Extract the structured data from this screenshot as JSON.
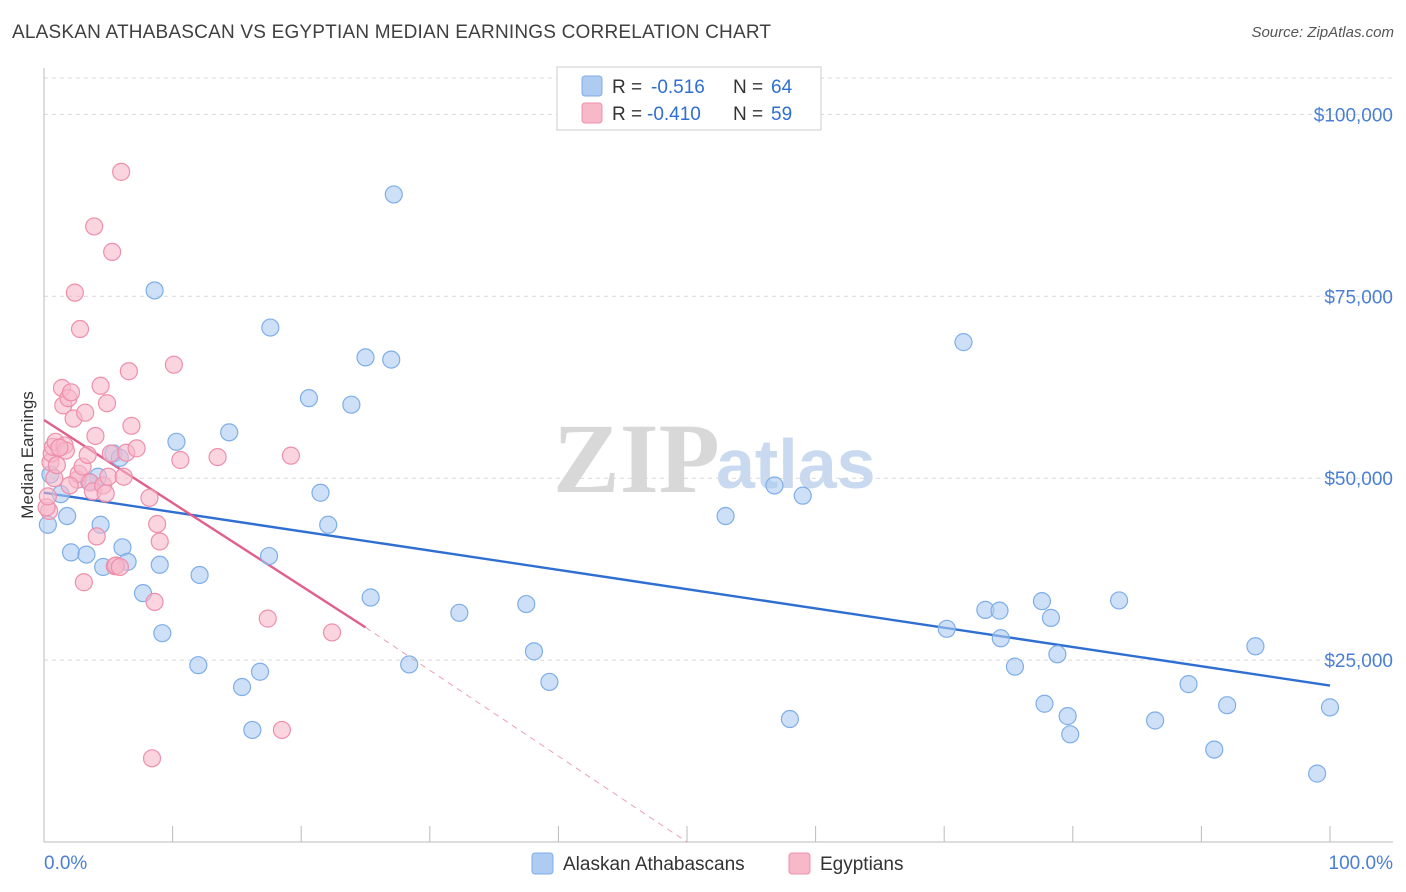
{
  "header": {
    "title": "ALASKAN ATHABASCAN VS EGYPTIAN MEDIAN EARNINGS CORRELATION CHART",
    "source": "Source: ZipAtlas.com"
  },
  "watermark": {
    "zip": "ZIP",
    "atlas": "atlas"
  },
  "legend_top": {
    "rows": [
      {
        "r_label": "R =",
        "r_value": "-0.516",
        "n_label": "N =",
        "n_value": "64",
        "color": "#aecbf2"
      },
      {
        "r_label": "R =",
        "r_value": "-0.410",
        "n_label": "N =",
        "n_value": "59",
        "color": "#f7b8c9"
      }
    ]
  },
  "legend_bottom": {
    "items": [
      {
        "label": "Alaskan Athabascans",
        "color": "#aecbf2"
      },
      {
        "label": "Egyptians",
        "color": "#f7b8c9"
      }
    ]
  },
  "chart_data": {
    "type": "scatter",
    "title": "ALASKAN ATHABASCAN VS EGYPTIAN MEDIAN EARNINGS CORRELATION CHART",
    "xlabel": "",
    "ylabel": "Median Earnings",
    "xlim": [
      0,
      100
    ],
    "ylim": [
      0,
      105000
    ],
    "x_tick_labels": [
      "0.0%",
      "100.0%"
    ],
    "y_ticks": [
      25000,
      50000,
      75000,
      100000
    ],
    "y_tick_labels": [
      "$25,000",
      "$50,000",
      "$75,000",
      "$100,000"
    ],
    "grid": true,
    "series": [
      {
        "name": "Alaskan Athabascans",
        "color": "#7eaee8",
        "fill": "#aecbf2",
        "trend": {
          "x": [
            0,
            100
          ],
          "y": [
            48000,
            21500
          ],
          "color": "#2e6fd1"
        },
        "points": [
          [
            0.3,
            43.6
          ],
          [
            0.5,
            50.5
          ],
          [
            1.3,
            47.8
          ],
          [
            1.8,
            44.8
          ],
          [
            2.1,
            39.8
          ],
          [
            3.3,
            39.5
          ],
          [
            4.2,
            50.2
          ],
          [
            4.4,
            43.6
          ],
          [
            4.6,
            37.8
          ],
          [
            5.4,
            53.4
          ],
          [
            5.9,
            52.8
          ],
          [
            6.1,
            40.5
          ],
          [
            6.5,
            38.5
          ],
          [
            7.7,
            34.2
          ],
          [
            8.6,
            75.8
          ],
          [
            9.0,
            38.1
          ],
          [
            9.2,
            28.7
          ],
          [
            10.3,
            55.0
          ],
          [
            12.0,
            24.3
          ],
          [
            12.1,
            36.7
          ],
          [
            15.4,
            21.3
          ],
          [
            14.4,
            56.3
          ],
          [
            16.2,
            15.4
          ],
          [
            16.8,
            23.4
          ],
          [
            17.5,
            39.3
          ],
          [
            17.6,
            70.7
          ],
          [
            20.6,
            61.0
          ],
          [
            21.5,
            48.0
          ],
          [
            22.1,
            43.6
          ],
          [
            25.0,
            66.6
          ],
          [
            23.9,
            60.1
          ],
          [
            25.4,
            33.6
          ],
          [
            27.0,
            66.3
          ],
          [
            27.2,
            89.0
          ],
          [
            28.4,
            24.4
          ],
          [
            32.3,
            31.5
          ],
          [
            37.5,
            32.7
          ],
          [
            38.1,
            26.2
          ],
          [
            39.3,
            22.0
          ],
          [
            53.0,
            44.8
          ],
          [
            56.8,
            49.0
          ],
          [
            58.0,
            16.9
          ],
          [
            59.0,
            47.6
          ],
          [
            70.2,
            29.3
          ],
          [
            71.5,
            68.7
          ],
          [
            73.2,
            31.9
          ],
          [
            74.3,
            31.8
          ],
          [
            74.4,
            28.0
          ],
          [
            75.5,
            24.1
          ],
          [
            77.8,
            19.0
          ],
          [
            77.6,
            33.1
          ],
          [
            78.3,
            30.8
          ],
          [
            78.8,
            25.8
          ],
          [
            79.6,
            17.3
          ],
          [
            79.8,
            14.8
          ],
          [
            83.6,
            33.2
          ],
          [
            86.4,
            16.7
          ],
          [
            89.0,
            21.7
          ],
          [
            91.0,
            12.7
          ],
          [
            92.0,
            18.8
          ],
          [
            94.2,
            26.9
          ],
          [
            99.0,
            9.4
          ],
          [
            100.0,
            18.5
          ],
          [
            3.5,
            49.5
          ]
        ]
      },
      {
        "name": "Egyptians",
        "color": "#ee8fab",
        "fill": "#f7b8c9",
        "trend": {
          "x": [
            0,
            25
          ],
          "y": [
            58000,
            29500
          ],
          "color": "#e0608a",
          "dashed_to": [
            50,
            0
          ]
        },
        "points": [
          [
            0.4,
            45.5
          ],
          [
            0.5,
            52.2
          ],
          [
            0.6,
            53.4
          ],
          [
            0.7,
            54.3
          ],
          [
            0.8,
            50.0
          ],
          [
            0.9,
            55.0
          ],
          [
            1.0,
            51.8
          ],
          [
            1.4,
            62.4
          ],
          [
            1.5,
            60.0
          ],
          [
            1.6,
            54.5
          ],
          [
            1.7,
            53.8
          ],
          [
            1.9,
            61.0
          ],
          [
            2.1,
            61.8
          ],
          [
            2.3,
            58.2
          ],
          [
            2.4,
            75.5
          ],
          [
            2.6,
            49.8
          ],
          [
            2.7,
            50.6
          ],
          [
            2.8,
            70.5
          ],
          [
            3.0,
            51.6
          ],
          [
            3.1,
            35.7
          ],
          [
            3.2,
            59.0
          ],
          [
            3.4,
            53.2
          ],
          [
            3.6,
            49.4
          ],
          [
            3.8,
            48.2
          ],
          [
            3.9,
            84.6
          ],
          [
            4.0,
            55.8
          ],
          [
            4.1,
            42.0
          ],
          [
            4.4,
            62.7
          ],
          [
            4.6,
            49.0
          ],
          [
            4.8,
            47.9
          ],
          [
            4.9,
            60.3
          ],
          [
            5.0,
            50.2
          ],
          [
            5.2,
            53.4
          ],
          [
            5.3,
            81.1
          ],
          [
            5.5,
            37.9
          ],
          [
            5.6,
            38.0
          ],
          [
            5.9,
            37.8
          ],
          [
            6.0,
            92.1
          ],
          [
            6.2,
            50.2
          ],
          [
            6.4,
            53.5
          ],
          [
            6.6,
            64.7
          ],
          [
            6.8,
            57.2
          ],
          [
            7.2,
            54.1
          ],
          [
            8.2,
            47.3
          ],
          [
            8.4,
            11.5
          ],
          [
            8.6,
            33.0
          ],
          [
            8.8,
            43.7
          ],
          [
            9.0,
            41.3
          ],
          [
            10.1,
            65.6
          ],
          [
            10.6,
            52.5
          ],
          [
            13.5,
            52.9
          ],
          [
            17.4,
            30.7
          ],
          [
            18.5,
            15.4
          ],
          [
            19.2,
            53.1
          ],
          [
            22.4,
            28.8
          ],
          [
            0.2,
            46.0
          ],
          [
            1.2,
            54.2
          ],
          [
            2.0,
            49.0
          ],
          [
            0.3,
            47.5
          ]
        ]
      }
    ]
  }
}
